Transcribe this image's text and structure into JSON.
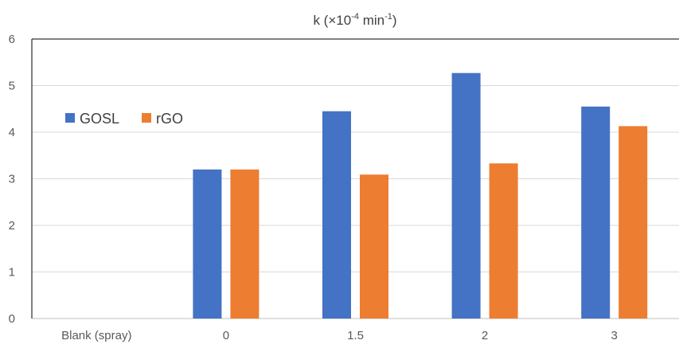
{
  "chart_data": {
    "type": "bar",
    "title_main": "k (×10",
    "title_sup1": "-4",
    "title_mid": " min",
    "title_sup2": "-1",
    "title_end": ")",
    "categories": [
      "Blank (spray)",
      "0",
      "1.5",
      "2",
      "3"
    ],
    "series": [
      {
        "name": "GOSL",
        "color": "#4472C4",
        "values": [
          null,
          3.2,
          4.45,
          5.27,
          4.55
        ]
      },
      {
        "name": "rGO",
        "color": "#ED7D31",
        "values": [
          null,
          3.2,
          3.09,
          3.33,
          4.13
        ]
      }
    ],
    "ylim": [
      0,
      6
    ],
    "yticks": [
      "0",
      "1",
      "2",
      "3",
      "4",
      "5",
      "6"
    ],
    "grid": true,
    "legend_position": "left"
  }
}
